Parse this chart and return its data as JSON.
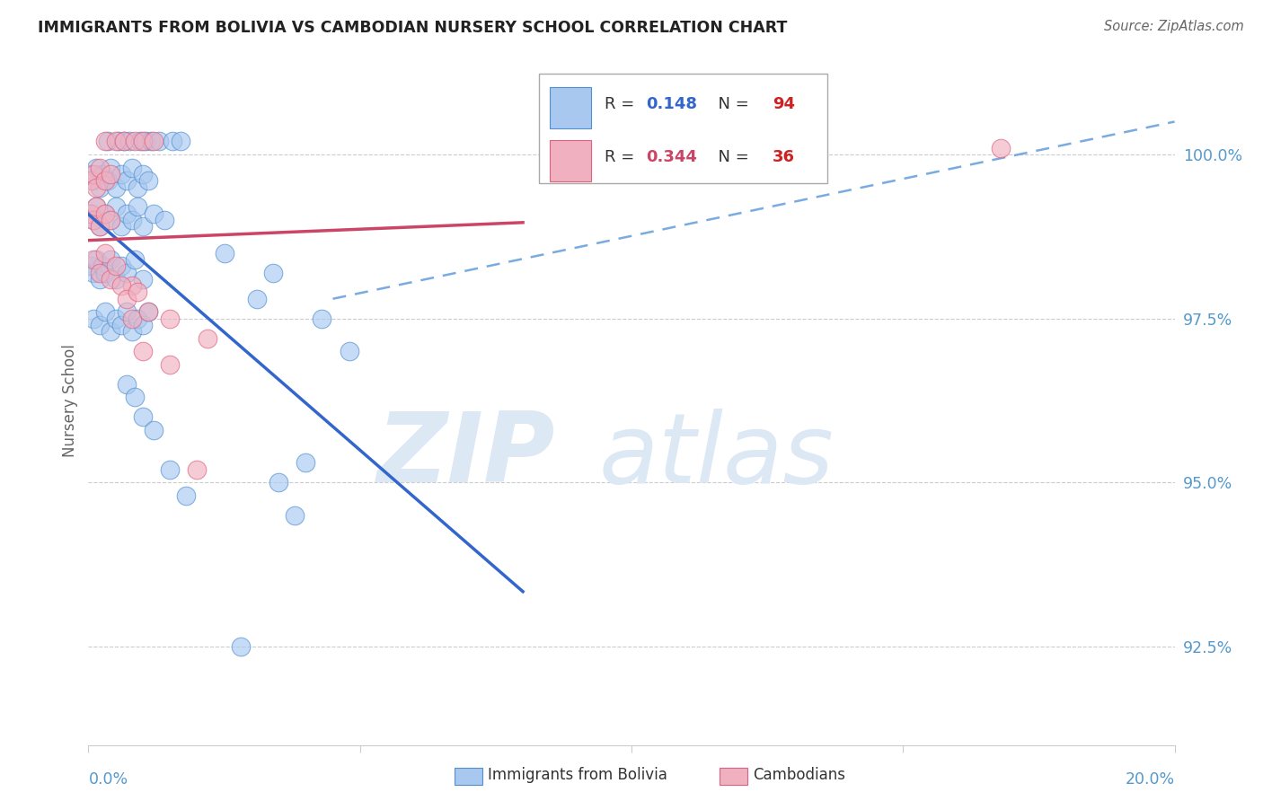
{
  "title": "IMMIGRANTS FROM BOLIVIA VS CAMBODIAN NURSERY SCHOOL CORRELATION CHART",
  "source": "Source: ZipAtlas.com",
  "ylabel": "Nursery School",
  "y_ticks": [
    92.5,
    95.0,
    97.5,
    100.0
  ],
  "y_tick_labels": [
    "92.5%",
    "95.0%",
    "97.5%",
    "100.0%"
  ],
  "xlim": [
    0.0,
    20.0
  ],
  "ylim": [
    91.0,
    101.5
  ],
  "blue_R": 0.148,
  "blue_N": 94,
  "pink_R": 0.344,
  "pink_N": 36,
  "legend_blue_label": "Immigrants from Bolivia",
  "legend_pink_label": "Cambodians",
  "blue_fill": "#a8c8f0",
  "pink_fill": "#f0b0c0",
  "blue_edge": "#5090d0",
  "pink_edge": "#e06080",
  "blue_line": "#3366cc",
  "pink_line": "#cc4466",
  "dash_line": "#7aabe0",
  "watermark_color": "#dde8f5",
  "grid_color": "#cccccc",
  "tick_color": "#5599cc",
  "ylabel_color": "#666666",
  "title_color": "#222222",
  "source_color": "#666666",
  "legend_text_color": "#333333",
  "legend_R_blue_color": "#3366cc",
  "legend_N_color": "#cc2222",
  "legend_R_pink_color": "#cc4466"
}
